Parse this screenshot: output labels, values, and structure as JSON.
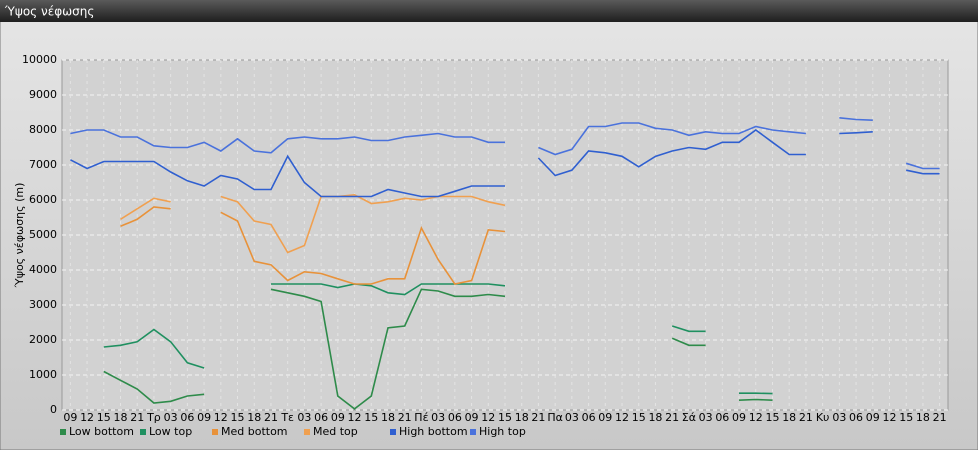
{
  "chart_data": {
    "type": "line",
    "title": "Ύψος νέφωσης",
    "y_label": "Ύψος νέφωσης (m)",
    "categories": [
      "09",
      "12",
      "15",
      "18",
      "21",
      "Τρ",
      "03",
      "06",
      "09",
      "12",
      "15",
      "18",
      "21",
      "Τε",
      "03",
      "06",
      "09",
      "12",
      "15",
      "18",
      "21",
      "Πέ",
      "03",
      "06",
      "09",
      "12",
      "15",
      "18",
      "21",
      "Πα",
      "03",
      "06",
      "09",
      "12",
      "15",
      "18",
      "21",
      "Σά",
      "03",
      "06",
      "09",
      "12",
      "15",
      "18",
      "21",
      "Κυ",
      "03",
      "06",
      "09",
      "12",
      "15",
      "18",
      "21"
    ],
    "ylim": [
      0,
      10000
    ],
    "yticks": [
      0,
      1000,
      2000,
      3000,
      4000,
      5000,
      6000,
      7000,
      8000,
      9000,
      10000
    ],
    "grid": true,
    "series": [
      {
        "name": "Low bottom",
        "color": "#2e8b4a",
        "values": [
          null,
          null,
          1100,
          850,
          600,
          200,
          250,
          400,
          450,
          null,
          null,
          null,
          3450,
          3350,
          3250,
          3100,
          400,
          30,
          400,
          2350,
          2400,
          3450,
          3400,
          3250,
          3250,
          3300,
          3250,
          null,
          null,
          null,
          null,
          null,
          null,
          null,
          null,
          null,
          2050,
          1850,
          1850,
          null,
          280,
          300,
          280,
          null,
          null,
          null,
          null,
          null,
          null,
          null,
          null,
          null,
          null
        ]
      },
      {
        "name": "Low top",
        "color": "#1f9060",
        "values": [
          null,
          null,
          1800,
          1850,
          1950,
          2300,
          1950,
          1350,
          1200,
          null,
          null,
          null,
          3600,
          3600,
          3600,
          3600,
          3500,
          3600,
          3550,
          3350,
          3300,
          3600,
          3600,
          3600,
          3600,
          3600,
          3550,
          null,
          null,
          null,
          null,
          null,
          null,
          null,
          null,
          null,
          2400,
          2250,
          2250,
          null,
          480,
          480,
          470,
          null,
          null,
          null,
          null,
          null,
          null,
          null,
          null,
          null,
          null
        ]
      },
      {
        "name": "Med bottom",
        "color": "#e8923a",
        "values": [
          null,
          null,
          null,
          5250,
          5450,
          5800,
          5750,
          null,
          null,
          5650,
          5400,
          4250,
          4150,
          3700,
          3950,
          3900,
          3750,
          3600,
          3600,
          3750,
          3750,
          5200,
          4300,
          3600,
          3700,
          5150,
          5100,
          null,
          null,
          null,
          null,
          null,
          null,
          null,
          null,
          null,
          null,
          null,
          null,
          null,
          null,
          null,
          null,
          null,
          null,
          null,
          null,
          null,
          null,
          null,
          null,
          null,
          null
        ]
      },
      {
        "name": "Med top",
        "color": "#f0a050",
        "values": [
          null,
          null,
          null,
          5450,
          5750,
          6050,
          5950,
          null,
          null,
          6100,
          5950,
          5400,
          5300,
          4500,
          4700,
          6100,
          6100,
          6150,
          5900,
          5950,
          6050,
          6000,
          6100,
          6100,
          6100,
          5950,
          5850,
          null,
          null,
          null,
          null,
          null,
          null,
          null,
          null,
          null,
          null,
          null,
          null,
          null,
          null,
          null,
          null,
          null,
          null,
          null,
          null,
          null,
          null,
          null,
          null,
          null,
          null
        ]
      },
      {
        "name": "High bottom",
        "color": "#2f5fd0",
        "values": [
          7150,
          6900,
          7100,
          7100,
          7100,
          7100,
          6800,
          6550,
          6400,
          6700,
          6600,
          6300,
          6300,
          7250,
          6500,
          6100,
          6100,
          6100,
          6100,
          6300,
          6200,
          6100,
          6100,
          6250,
          6400,
          6400,
          6400,
          null,
          7200,
          6700,
          6850,
          7400,
          7350,
          7250,
          6950,
          7250,
          7400,
          7500,
          7450,
          7650,
          7650,
          8000,
          7650,
          7300,
          7300,
          null,
          7900,
          7920,
          7950,
          null,
          6850,
          6750,
          6750
        ]
      },
      {
        "name": "High top",
        "color": "#4a72dc",
        "values": [
          7900,
          8000,
          8000,
          7800,
          7800,
          7550,
          7500,
          7500,
          7650,
          7400,
          7750,
          7400,
          7350,
          7750,
          7800,
          7750,
          7750,
          7800,
          7700,
          7700,
          7800,
          7850,
          7900,
          7800,
          7800,
          7650,
          7650,
          null,
          7500,
          7300,
          7450,
          8100,
          8100,
          8200,
          8200,
          8050,
          8000,
          7850,
          7950,
          7900,
          7900,
          8100,
          8000,
          7950,
          7900,
          null,
          8350,
          8300,
          8280,
          null,
          7050,
          6900,
          6900
        ]
      }
    ]
  }
}
